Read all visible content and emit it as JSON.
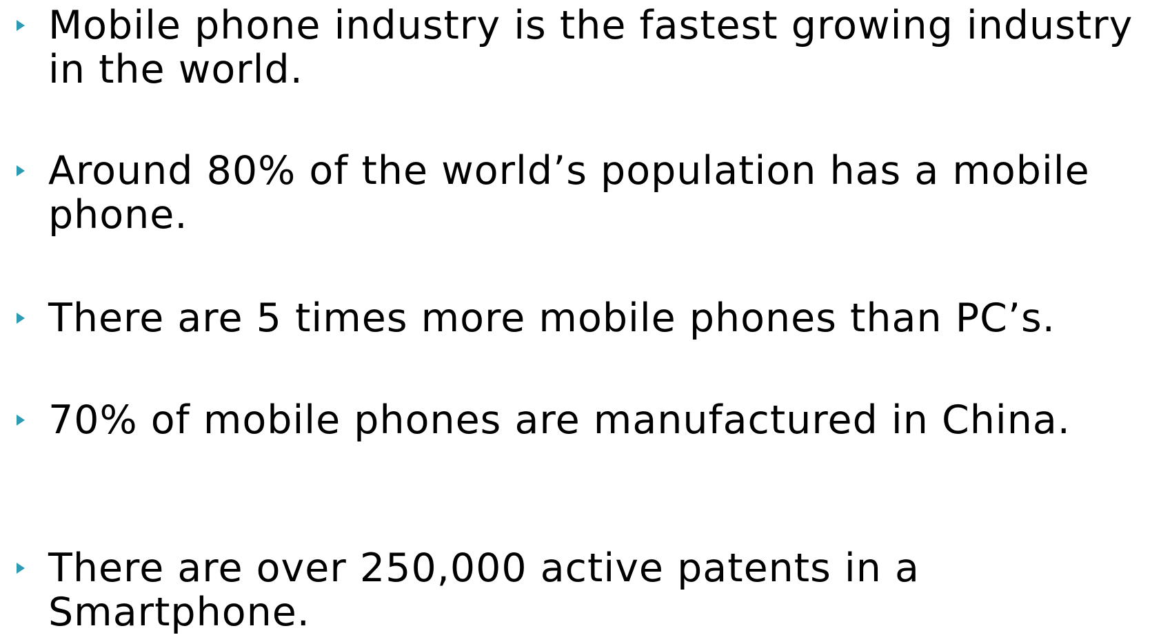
{
  "bullets": [
    "Mobile phone industry is the fastest growing industry in the world.",
    "Around 80% of the world’s population has a mobile phone.",
    "There are 5 times more mobile phones than PC’s.",
    "70% of mobile phones are manufactured in China.",
    "There are over 250,000 active patents in a Smartphone."
  ]
}
